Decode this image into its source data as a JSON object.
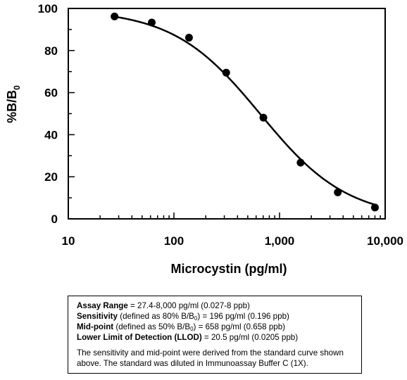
{
  "chart_data": {
    "type": "scatter",
    "xlabel": "Microcystin (pg/ml)",
    "ylabel_main": "%B/B",
    "ylabel_sub": "0",
    "x_scale": "log",
    "xlim": [
      10,
      10000
    ],
    "ylim": [
      0,
      100
    ],
    "x_ticks": [
      10,
      100,
      1000,
      10000
    ],
    "x_tick_labels": [
      "10",
      "100",
      "1,000",
      "10,000"
    ],
    "y_ticks": [
      0,
      20,
      40,
      60,
      80,
      100
    ],
    "y_tick_labels": [
      "0",
      "20",
      "40",
      "60",
      "80",
      "100"
    ],
    "grid": false,
    "series": [
      {
        "x": [
          27.4,
          61.7,
          138.9,
          312.5,
          703,
          1582,
          3559,
          8000
        ],
        "y": [
          96.2,
          93.3,
          86.1,
          69.5,
          48.1,
          26.7,
          12.6,
          5.4
        ],
        "curve": "four-parameter logistic fit",
        "color": "#000000"
      }
    ]
  },
  "info": {
    "assay_range_label": "Assay Range",
    "assay_range_value": " = 27.4-8,000 pg/ml (0.027-8 ppb)",
    "sensitivity_label": "Sensitivity",
    "sensitivity_def_a": " (defined as 80% B/B",
    "sensitivity_def_sub": "0",
    "sensitivity_value": ") =  196 pg/ml (0.196 ppb)",
    "midpoint_label": "Mid-point",
    "midpoint_def_a": " (defined as 50% B/B",
    "midpoint_def_sub": "0",
    "midpoint_value": ") =  658 pg/ml (0.658 ppb)",
    "llod_label": "Lower Limit of Detection (LLOD)",
    "llod_value": " =  20.5 pg/ml (0.0205 ppb)",
    "note": "The sensitivity and mid-point were derived from the standard curve shown above. The standard was diluted in Immunoassay Buffer C (1X)."
  }
}
